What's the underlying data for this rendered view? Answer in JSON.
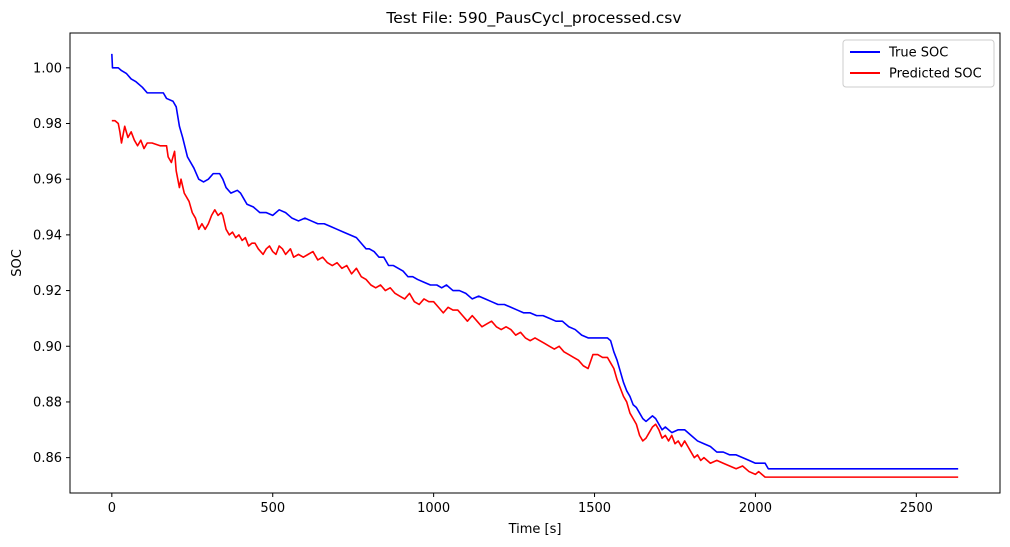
{
  "chart_data": {
    "type": "line",
    "title": "Test File: 590_PausCycl_processed.csv",
    "xlabel": "Time [s]",
    "ylabel": "SOC",
    "xlim": [
      -130,
      2760
    ],
    "ylim": [
      0.8473,
      1.0125
    ],
    "xticks": [
      0,
      500,
      1000,
      1500,
      2000,
      2500
    ],
    "yticks": [
      0.86,
      0.88,
      0.9,
      0.92,
      0.94,
      0.96,
      0.98,
      1.0
    ],
    "ytick_format": 2,
    "grid": false,
    "legend_position": "upper right",
    "series": [
      {
        "name": "True SOC",
        "color": "#0000ff",
        "points": [
          [
            0,
            1.005
          ],
          [
            2,
            1.0
          ],
          [
            20,
            1.0
          ],
          [
            30,
            0.999
          ],
          [
            45,
            0.998
          ],
          [
            60,
            0.996
          ],
          [
            75,
            0.995
          ],
          [
            95,
            0.993
          ],
          [
            110,
            0.991
          ],
          [
            130,
            0.991
          ],
          [
            160,
            0.991
          ],
          [
            170,
            0.989
          ],
          [
            190,
            0.988
          ],
          [
            200,
            0.986
          ],
          [
            210,
            0.979
          ],
          [
            220,
            0.975
          ],
          [
            235,
            0.968
          ],
          [
            255,
            0.964
          ],
          [
            270,
            0.96
          ],
          [
            285,
            0.959
          ],
          [
            300,
            0.96
          ],
          [
            315,
            0.962
          ],
          [
            335,
            0.962
          ],
          [
            345,
            0.96
          ],
          [
            355,
            0.957
          ],
          [
            370,
            0.955
          ],
          [
            390,
            0.956
          ],
          [
            400,
            0.955
          ],
          [
            410,
            0.953
          ],
          [
            420,
            0.951
          ],
          [
            440,
            0.95
          ],
          [
            450,
            0.949
          ],
          [
            460,
            0.948
          ],
          [
            480,
            0.948
          ],
          [
            500,
            0.947
          ],
          [
            520,
            0.949
          ],
          [
            540,
            0.948
          ],
          [
            560,
            0.946
          ],
          [
            580,
            0.945
          ],
          [
            600,
            0.946
          ],
          [
            620,
            0.945
          ],
          [
            640,
            0.944
          ],
          [
            660,
            0.944
          ],
          [
            680,
            0.943
          ],
          [
            700,
            0.942
          ],
          [
            720,
            0.941
          ],
          [
            740,
            0.94
          ],
          [
            760,
            0.939
          ],
          [
            775,
            0.937
          ],
          [
            790,
            0.935
          ],
          [
            800,
            0.935
          ],
          [
            815,
            0.934
          ],
          [
            830,
            0.932
          ],
          [
            845,
            0.932
          ],
          [
            860,
            0.929
          ],
          [
            875,
            0.929
          ],
          [
            890,
            0.928
          ],
          [
            905,
            0.927
          ],
          [
            920,
            0.925
          ],
          [
            935,
            0.925
          ],
          [
            950,
            0.924
          ],
          [
            970,
            0.923
          ],
          [
            990,
            0.922
          ],
          [
            1010,
            0.922
          ],
          [
            1025,
            0.921
          ],
          [
            1040,
            0.922
          ],
          [
            1060,
            0.92
          ],
          [
            1080,
            0.92
          ],
          [
            1100,
            0.919
          ],
          [
            1120,
            0.917
          ],
          [
            1140,
            0.918
          ],
          [
            1160,
            0.917
          ],
          [
            1180,
            0.916
          ],
          [
            1200,
            0.915
          ],
          [
            1220,
            0.915
          ],
          [
            1240,
            0.914
          ],
          [
            1260,
            0.913
          ],
          [
            1280,
            0.912
          ],
          [
            1300,
            0.912
          ],
          [
            1320,
            0.911
          ],
          [
            1340,
            0.911
          ],
          [
            1360,
            0.91
          ],
          [
            1380,
            0.909
          ],
          [
            1400,
            0.909
          ],
          [
            1420,
            0.907
          ],
          [
            1440,
            0.906
          ],
          [
            1460,
            0.904
          ],
          [
            1480,
            0.903
          ],
          [
            1500,
            0.903
          ],
          [
            1520,
            0.903
          ],
          [
            1540,
            0.903
          ],
          [
            1550,
            0.902
          ],
          [
            1560,
            0.898
          ],
          [
            1570,
            0.895
          ],
          [
            1580,
            0.891
          ],
          [
            1590,
            0.887
          ],
          [
            1600,
            0.884
          ],
          [
            1610,
            0.882
          ],
          [
            1620,
            0.879
          ],
          [
            1630,
            0.878
          ],
          [
            1640,
            0.876
          ],
          [
            1650,
            0.874
          ],
          [
            1660,
            0.873
          ],
          [
            1680,
            0.875
          ],
          [
            1690,
            0.874
          ],
          [
            1700,
            0.872
          ],
          [
            1710,
            0.87
          ],
          [
            1720,
            0.871
          ],
          [
            1740,
            0.869
          ],
          [
            1760,
            0.87
          ],
          [
            1780,
            0.87
          ],
          [
            1800,
            0.868
          ],
          [
            1820,
            0.866
          ],
          [
            1840,
            0.865
          ],
          [
            1860,
            0.864
          ],
          [
            1880,
            0.862
          ],
          [
            1900,
            0.862
          ],
          [
            1920,
            0.861
          ],
          [
            1940,
            0.861
          ],
          [
            1960,
            0.86
          ],
          [
            1980,
            0.859
          ],
          [
            2000,
            0.858
          ],
          [
            2020,
            0.858
          ],
          [
            2030,
            0.858
          ],
          [
            2035,
            0.857
          ],
          [
            2040,
            0.856
          ],
          [
            2200,
            0.856
          ],
          [
            2400,
            0.856
          ],
          [
            2630,
            0.856
          ]
        ]
      },
      {
        "name": "Predicted SOC",
        "color": "#ff0000",
        "points": [
          [
            0,
            0.981
          ],
          [
            10,
            0.981
          ],
          [
            20,
            0.98
          ],
          [
            25,
            0.977
          ],
          [
            30,
            0.973
          ],
          [
            40,
            0.979
          ],
          [
            50,
            0.975
          ],
          [
            60,
            0.977
          ],
          [
            70,
            0.974
          ],
          [
            80,
            0.972
          ],
          [
            90,
            0.974
          ],
          [
            100,
            0.971
          ],
          [
            110,
            0.973
          ],
          [
            125,
            0.973
          ],
          [
            150,
            0.972
          ],
          [
            160,
            0.972
          ],
          [
            170,
            0.972
          ],
          [
            175,
            0.968
          ],
          [
            185,
            0.966
          ],
          [
            195,
            0.97
          ],
          [
            200,
            0.963
          ],
          [
            210,
            0.957
          ],
          [
            215,
            0.96
          ],
          [
            225,
            0.955
          ],
          [
            240,
            0.952
          ],
          [
            250,
            0.948
          ],
          [
            260,
            0.946
          ],
          [
            270,
            0.942
          ],
          [
            280,
            0.944
          ],
          [
            290,
            0.942
          ],
          [
            300,
            0.944
          ],
          [
            310,
            0.947
          ],
          [
            320,
            0.949
          ],
          [
            330,
            0.947
          ],
          [
            340,
            0.948
          ],
          [
            345,
            0.947
          ],
          [
            355,
            0.942
          ],
          [
            365,
            0.94
          ],
          [
            375,
            0.941
          ],
          [
            385,
            0.939
          ],
          [
            395,
            0.94
          ],
          [
            405,
            0.938
          ],
          [
            415,
            0.939
          ],
          [
            425,
            0.936
          ],
          [
            435,
            0.937
          ],
          [
            445,
            0.937
          ],
          [
            455,
            0.935
          ],
          [
            470,
            0.933
          ],
          [
            480,
            0.935
          ],
          [
            490,
            0.936
          ],
          [
            500,
            0.934
          ],
          [
            510,
            0.933
          ],
          [
            520,
            0.936
          ],
          [
            530,
            0.935
          ],
          [
            540,
            0.933
          ],
          [
            555,
            0.935
          ],
          [
            565,
            0.932
          ],
          [
            580,
            0.933
          ],
          [
            595,
            0.932
          ],
          [
            610,
            0.933
          ],
          [
            625,
            0.934
          ],
          [
            640,
            0.931
          ],
          [
            655,
            0.932
          ],
          [
            670,
            0.93
          ],
          [
            685,
            0.929
          ],
          [
            700,
            0.93
          ],
          [
            715,
            0.928
          ],
          [
            730,
            0.929
          ],
          [
            745,
            0.926
          ],
          [
            760,
            0.928
          ],
          [
            775,
            0.925
          ],
          [
            790,
            0.924
          ],
          [
            805,
            0.922
          ],
          [
            820,
            0.921
          ],
          [
            835,
            0.922
          ],
          [
            850,
            0.92
          ],
          [
            865,
            0.921
          ],
          [
            880,
            0.919
          ],
          [
            895,
            0.918
          ],
          [
            910,
            0.917
          ],
          [
            925,
            0.919
          ],
          [
            940,
            0.916
          ],
          [
            955,
            0.915
          ],
          [
            970,
            0.917
          ],
          [
            985,
            0.916
          ],
          [
            1000,
            0.916
          ],
          [
            1015,
            0.914
          ],
          [
            1030,
            0.912
          ],
          [
            1045,
            0.914
          ],
          [
            1060,
            0.913
          ],
          [
            1075,
            0.913
          ],
          [
            1090,
            0.911
          ],
          [
            1105,
            0.909
          ],
          [
            1120,
            0.911
          ],
          [
            1135,
            0.909
          ],
          [
            1150,
            0.907
          ],
          [
            1165,
            0.908
          ],
          [
            1180,
            0.909
          ],
          [
            1195,
            0.907
          ],
          [
            1210,
            0.906
          ],
          [
            1225,
            0.907
          ],
          [
            1240,
            0.906
          ],
          [
            1255,
            0.904
          ],
          [
            1270,
            0.905
          ],
          [
            1285,
            0.903
          ],
          [
            1300,
            0.902
          ],
          [
            1315,
            0.903
          ],
          [
            1330,
            0.902
          ],
          [
            1345,
            0.901
          ],
          [
            1360,
            0.9
          ],
          [
            1375,
            0.899
          ],
          [
            1390,
            0.9
          ],
          [
            1405,
            0.898
          ],
          [
            1420,
            0.897
          ],
          [
            1435,
            0.896
          ],
          [
            1450,
            0.895
          ],
          [
            1465,
            0.893
          ],
          [
            1480,
            0.892
          ],
          [
            1495,
            0.897
          ],
          [
            1510,
            0.897
          ],
          [
            1525,
            0.896
          ],
          [
            1540,
            0.896
          ],
          [
            1550,
            0.894
          ],
          [
            1560,
            0.892
          ],
          [
            1570,
            0.888
          ],
          [
            1580,
            0.885
          ],
          [
            1590,
            0.882
          ],
          [
            1600,
            0.88
          ],
          [
            1610,
            0.876
          ],
          [
            1620,
            0.874
          ],
          [
            1630,
            0.872
          ],
          [
            1640,
            0.868
          ],
          [
            1650,
            0.866
          ],
          [
            1660,
            0.867
          ],
          [
            1670,
            0.869
          ],
          [
            1680,
            0.871
          ],
          [
            1690,
            0.872
          ],
          [
            1700,
            0.87
          ],
          [
            1710,
            0.867
          ],
          [
            1720,
            0.868
          ],
          [
            1730,
            0.866
          ],
          [
            1740,
            0.868
          ],
          [
            1750,
            0.865
          ],
          [
            1760,
            0.866
          ],
          [
            1770,
            0.864
          ],
          [
            1780,
            0.866
          ],
          [
            1790,
            0.864
          ],
          [
            1800,
            0.862
          ],
          [
            1810,
            0.86
          ],
          [
            1820,
            0.861
          ],
          [
            1830,
            0.859
          ],
          [
            1840,
            0.86
          ],
          [
            1860,
            0.858
          ],
          [
            1880,
            0.859
          ],
          [
            1900,
            0.858
          ],
          [
            1920,
            0.857
          ],
          [
            1940,
            0.856
          ],
          [
            1960,
            0.857
          ],
          [
            1980,
            0.855
          ],
          [
            2000,
            0.854
          ],
          [
            2010,
            0.855
          ],
          [
            2020,
            0.854
          ],
          [
            2030,
            0.853
          ],
          [
            2200,
            0.853
          ],
          [
            2400,
            0.853
          ],
          [
            2630,
            0.853
          ]
        ]
      }
    ]
  }
}
